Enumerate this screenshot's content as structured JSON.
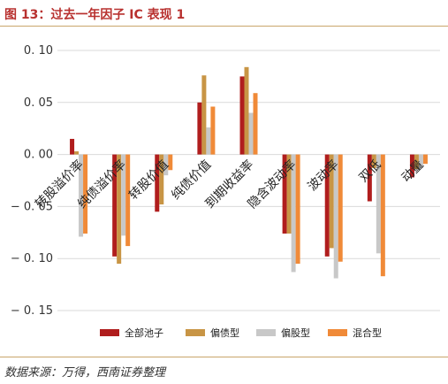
{
  "figure": {
    "title": "图 13：过去一年因子 IC 表现 1",
    "source": "数据来源：万得，西南证券整理"
  },
  "colors": {
    "title": "#b8312f",
    "rule": "#c9a66b",
    "grid": "#d9d9d9",
    "axis_text": "#333333"
  },
  "chart_data": {
    "type": "bar",
    "title": "",
    "xlabel": "",
    "ylabel": "",
    "ylim": [
      -0.15,
      0.1
    ],
    "yticks": [
      0.1,
      0.05,
      0.0,
      -0.05,
      -0.1,
      -0.15
    ],
    "ytick_labels": [
      "0. 10",
      "0. 05",
      "0. 00",
      "− 0. 05",
      "− 0. 10",
      "− 0. 15"
    ],
    "grid": true,
    "legend_position": "bottom",
    "categories": [
      "转股溢价率",
      "纯债溢价率",
      "转股价值",
      "纯债价值",
      "到期收益率",
      "隐含波动率",
      "波动率",
      "双低",
      "动量"
    ],
    "series": [
      {
        "name": "全部池子",
        "color": "#b01d1d",
        "values": [
          0.015,
          -0.098,
          -0.055,
          0.05,
          0.075,
          -0.076,
          -0.098,
          -0.045,
          -0.022
        ]
      },
      {
        "name": "偏债型",
        "color": "#c89545",
        "values": [
          0.003,
          -0.105,
          -0.048,
          0.076,
          0.084,
          -0.076,
          -0.09,
          -0.013,
          -0.014
        ]
      },
      {
        "name": "偏股型",
        "color": "#c8c8c8",
        "values": [
          -0.079,
          -0.078,
          -0.02,
          0.026,
          0.04,
          -0.113,
          -0.119,
          -0.095,
          -0.013
        ]
      },
      {
        "name": "混合型",
        "color": "#f08a38",
        "values": [
          -0.076,
          -0.088,
          -0.015,
          0.046,
          0.059,
          -0.105,
          -0.103,
          -0.117,
          -0.009
        ]
      }
    ]
  }
}
